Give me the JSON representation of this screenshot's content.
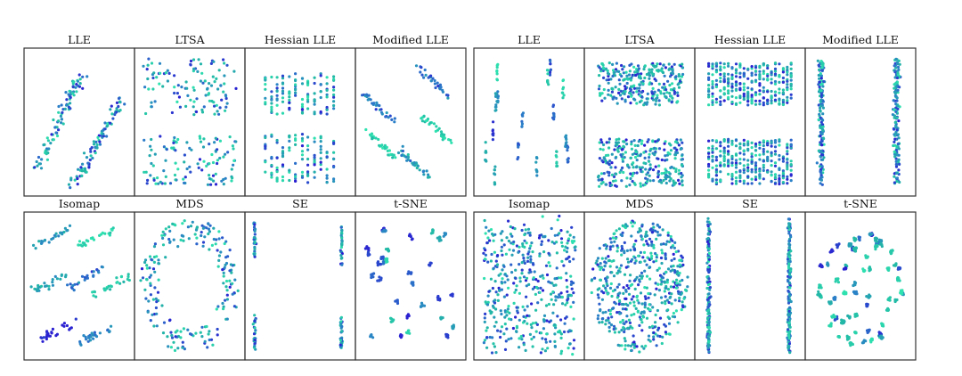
{
  "chart_data": [
    {
      "type": "scatter",
      "group": "left",
      "panels": [
        {
          "title": "LLE",
          "pattern": "two diagonal elongated clusters"
        },
        {
          "title": "LTSA",
          "pattern": "two horizontal bands"
        },
        {
          "title": "Hessian LLE",
          "pattern": "vertical stripes in two bands"
        },
        {
          "title": "Modified LLE",
          "pattern": "several small diagonal clusters"
        },
        {
          "title": "Isomap",
          "pattern": "grid of oblique clusters"
        },
        {
          "title": "MDS",
          "pattern": "elliptical ring of small clusters"
        },
        {
          "title": "SE",
          "pattern": "points collapsed to vertical edge columns"
        },
        {
          "title": "t-SNE",
          "pattern": "many small separated clusters"
        }
      ],
      "colormap": [
        "#2a1fd1",
        "#2b7fc8",
        "#22b8a6",
        "#2fe3b0"
      ]
    },
    {
      "type": "scatter",
      "group": "right",
      "panels": [
        {
          "title": "LLE",
          "pattern": "many short vertical segments"
        },
        {
          "title": "LTSA",
          "pattern": "two dense horizontal rectangles"
        },
        {
          "title": "Hessian LLE",
          "pattern": "two rounded dense blocks with vertical stripes"
        },
        {
          "title": "Modified LLE",
          "pattern": "two vertical bands"
        },
        {
          "title": "Isomap",
          "pattern": "dense oblique mass"
        },
        {
          "title": "MDS",
          "pattern": "dense filled ellipse"
        },
        {
          "title": "SE",
          "pattern": "two vertical edge columns"
        },
        {
          "title": "t-SNE",
          "pattern": "round mass of small blocks"
        }
      ],
      "colormap": [
        "#2a1fd1",
        "#2b7fc8",
        "#22b8a6",
        "#2fe3b0"
      ]
    }
  ]
}
